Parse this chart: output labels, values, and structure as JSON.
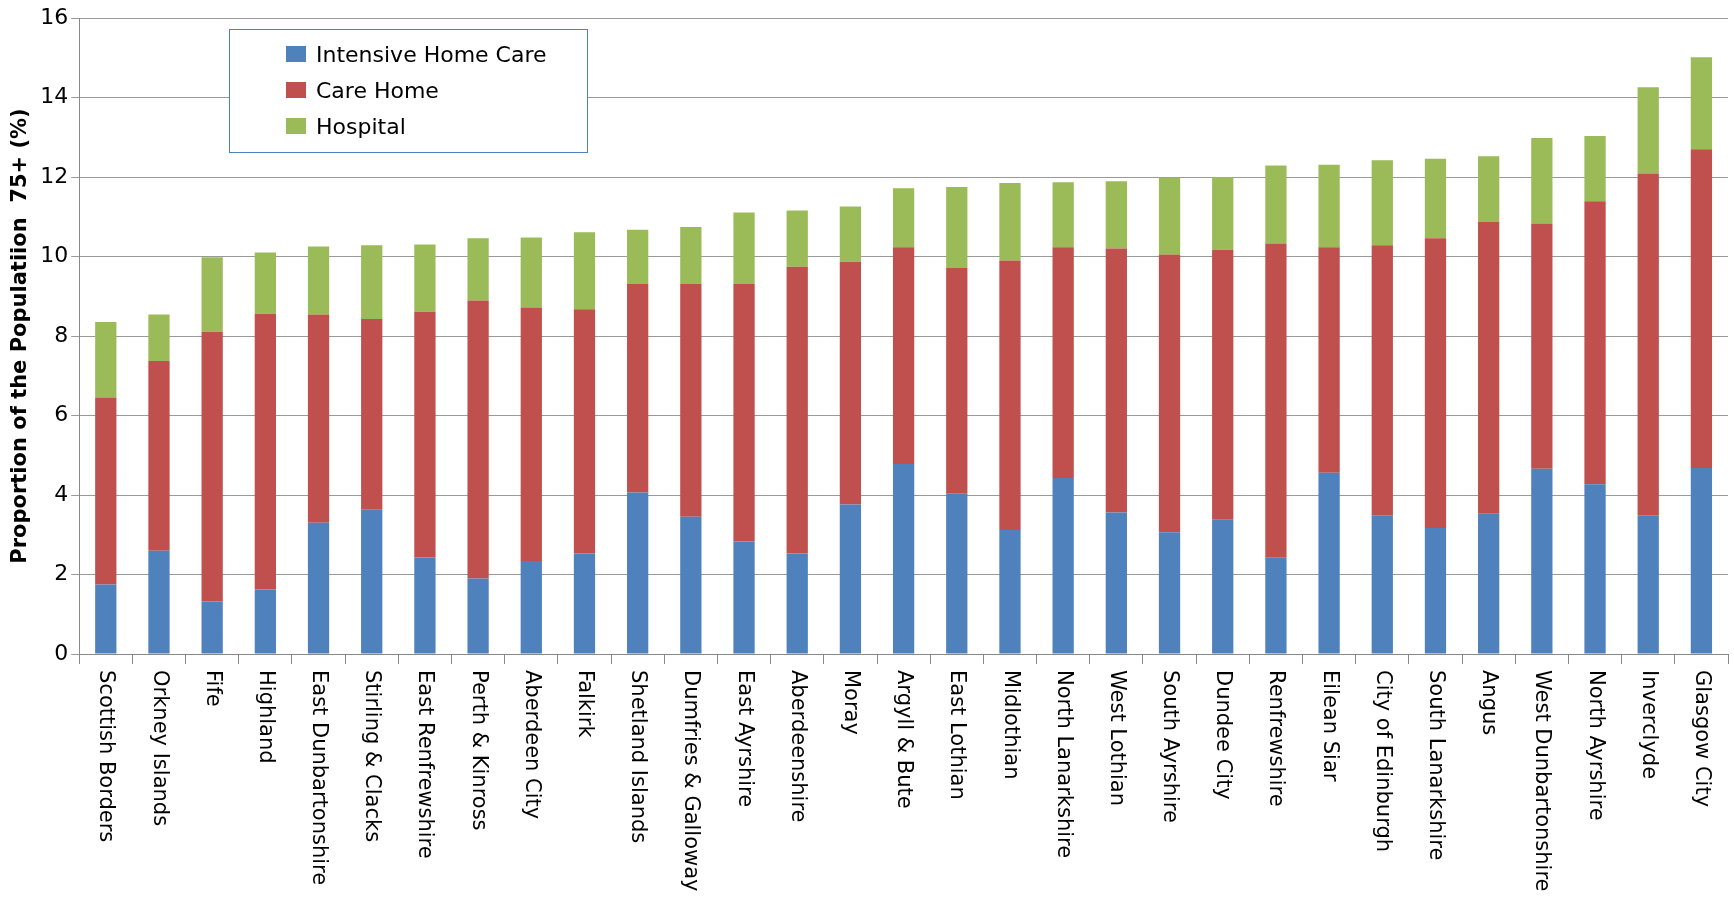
{
  "chart_data": {
    "type": "bar",
    "stacked": true,
    "ylabel": "Proportion of the Populatiion  75+ (%)",
    "categories": [
      "Scottish Borders",
      "Orkney Islands",
      "Fife",
      "Highland",
      "East Dunbartonshire",
      "Stirling & Clacks",
      "East Renfrewshire",
      "Perth & Kinross",
      "Aberdeen City",
      "Falkirk",
      "Shetland Islands",
      "Dumfries & Galloway",
      "East Ayrshire",
      "Aberdeenshire",
      "Moray",
      "Argyll & Bute",
      "East Lothian",
      "Midlothian",
      "North Lanarkshire",
      "West Lothian",
      "South Ayrshire",
      "Dundee City",
      "Renfrewshire",
      "Eilean Siar",
      "City of Edinburgh",
      "South Lanarkshire",
      "Angus",
      "West Dunbartonshire",
      "North Ayrshire",
      "Inverclyde",
      "Glasgow City"
    ],
    "series": [
      {
        "name": "Intensive Home  Care",
        "color": "#4f81bd",
        "values": [
          1.75,
          2.6,
          1.32,
          1.62,
          3.3,
          3.63,
          2.43,
          1.9,
          2.34,
          2.53,
          4.06,
          3.45,
          2.83,
          2.53,
          3.76,
          4.78,
          4.03,
          3.12,
          4.43,
          3.56,
          3.06,
          3.38,
          2.42,
          4.56,
          3.49,
          3.17,
          3.53,
          4.66,
          4.27,
          3.49,
          4.68
        ]
      },
      {
        "name": "Care Home",
        "color": "#c0504d",
        "values": [
          4.7,
          4.77,
          6.79,
          6.94,
          5.24,
          4.8,
          6.18,
          6.99,
          6.38,
          6.14,
          5.25,
          5.86,
          6.48,
          7.21,
          6.11,
          5.45,
          5.68,
          6.78,
          5.8,
          6.64,
          6.99,
          6.79,
          7.91,
          5.67,
          6.79,
          7.29,
          7.34,
          6.17,
          7.12,
          8.6,
          8.02
        ]
      },
      {
        "name": "Hospital",
        "color": "#9bbb59",
        "values": [
          1.9,
          1.17,
          1.87,
          1.54,
          1.71,
          1.85,
          1.69,
          1.57,
          1.76,
          1.94,
          1.36,
          1.43,
          1.8,
          1.42,
          1.39,
          1.49,
          2.04,
          1.95,
          1.64,
          1.69,
          1.94,
          1.83,
          1.96,
          2.08,
          2.14,
          2.0,
          1.65,
          2.15,
          1.64,
          2.17,
          2.31
        ]
      }
    ],
    "ylim": [
      0,
      16
    ],
    "yticks": [
      0,
      2,
      4,
      6,
      8,
      10,
      12,
      14,
      16
    ],
    "grid": "y",
    "legend": "top left"
  }
}
